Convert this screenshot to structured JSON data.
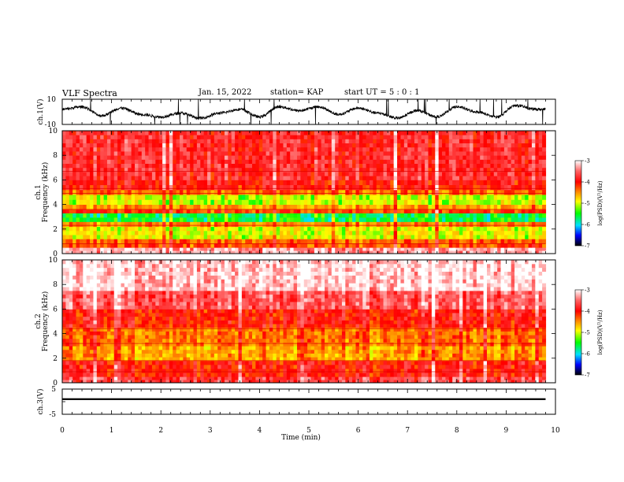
{
  "header": {
    "title": "VLF Spectra",
    "date": "Jan. 15, 2022",
    "station": "station= KAP",
    "start": "start  UT =  5 : 0  : 1"
  },
  "chart_data": [
    {
      "type": "line",
      "panel": "ch1-waveform",
      "ylabel": "ch.1(V)",
      "ylim": [
        -10,
        10
      ],
      "yticks": [
        "10",
        "-10"
      ],
      "xlim": [
        0,
        10
      ],
      "note_series": "quasi-periodic waveform, roughly one oscillation per 0.8 min between about -4 and +4 V with spikes to ±10 V",
      "x": [
        0,
        0.4,
        0.8,
        1.2,
        1.6,
        2.0,
        2.4,
        2.8,
        3.2,
        3.6,
        4.0,
        4.4,
        4.8,
        5.2,
        5.6,
        6.0,
        6.4,
        6.8,
        7.2,
        7.6,
        8.0,
        8.4,
        8.8,
        9.2,
        9.6,
        9.8
      ],
      "y": [
        2,
        4,
        -3,
        3,
        -2,
        -4,
        -1,
        -5,
        -1,
        2,
        -4,
        4,
        1,
        4,
        -2,
        3,
        -1,
        -5,
        1,
        -4,
        4,
        0,
        -4,
        5,
        2,
        2
      ]
    },
    {
      "type": "heatmap",
      "panel": "ch1-spectrogram",
      "ylabel": "ch.1 Frequency (kHz)",
      "ylim": [
        0,
        10
      ],
      "yticks": [
        "0",
        "2",
        "4",
        "6",
        "8",
        "10"
      ],
      "xlim": [
        0,
        9.8
      ],
      "colorbar": {
        "label": "log(PSD)(V²/Hz)",
        "range": [
          -7,
          -3
        ],
        "ticks": [
          "-3",
          "-4",
          "-5",
          "-6",
          "-7"
        ]
      },
      "bands_khz": [
        [
          0,
          0.5,
          -3.3
        ],
        [
          0.5,
          1.2,
          -4.3
        ],
        [
          1.2,
          2.2,
          -5.0
        ],
        [
          2.2,
          2.6,
          -4.5
        ],
        [
          2.6,
          3.3,
          -5.6
        ],
        [
          3.3,
          3.6,
          -4.2
        ],
        [
          3.6,
          4.0,
          -4.6
        ],
        [
          4.0,
          4.8,
          -5.1
        ],
        [
          4.8,
          5.2,
          -4.4
        ],
        [
          5.2,
          6.0,
          -4.0
        ],
        [
          6.0,
          10.0,
          -3.8
        ]
      ]
    },
    {
      "type": "heatmap",
      "panel": "ch2-spectrogram",
      "ylabel": "ch.2 Frequency (kHz)",
      "ylim": [
        0,
        10
      ],
      "yticks": [
        "0",
        "2",
        "4",
        "6",
        "8",
        "10"
      ],
      "xlim": [
        0,
        9.8
      ],
      "colorbar": {
        "label": "log(PSD)(V²/Hz)",
        "range": [
          -7,
          -3
        ],
        "ticks": [
          "-3",
          "-4",
          "-5",
          "-6",
          "-7"
        ]
      },
      "bands_khz": [
        [
          0,
          0.5,
          -3.7
        ],
        [
          0.5,
          1.8,
          -4.0
        ],
        [
          1.8,
          3.0,
          -4.6
        ],
        [
          3.0,
          4.5,
          -4.4
        ],
        [
          4.5,
          6.0,
          -4.0
        ],
        [
          6.0,
          7.5,
          -3.6
        ],
        [
          7.5,
          10.0,
          -3.15
        ]
      ]
    },
    {
      "type": "line",
      "panel": "ch3-waveform",
      "ylabel": "ch.3(V)",
      "ylim": [
        -5,
        5
      ],
      "yticks": [
        "5",
        "0",
        "-5"
      ],
      "xlim": [
        0,
        10
      ],
      "xlabel": "Time  (min)",
      "xticks": [
        "0",
        "1",
        "2",
        "3",
        "4",
        "5",
        "6",
        "7",
        "8",
        "9",
        "10"
      ],
      "note_series": "narrow constant band around 1 V",
      "x": [
        0,
        9.8
      ],
      "y": [
        1,
        1
      ]
    }
  ]
}
